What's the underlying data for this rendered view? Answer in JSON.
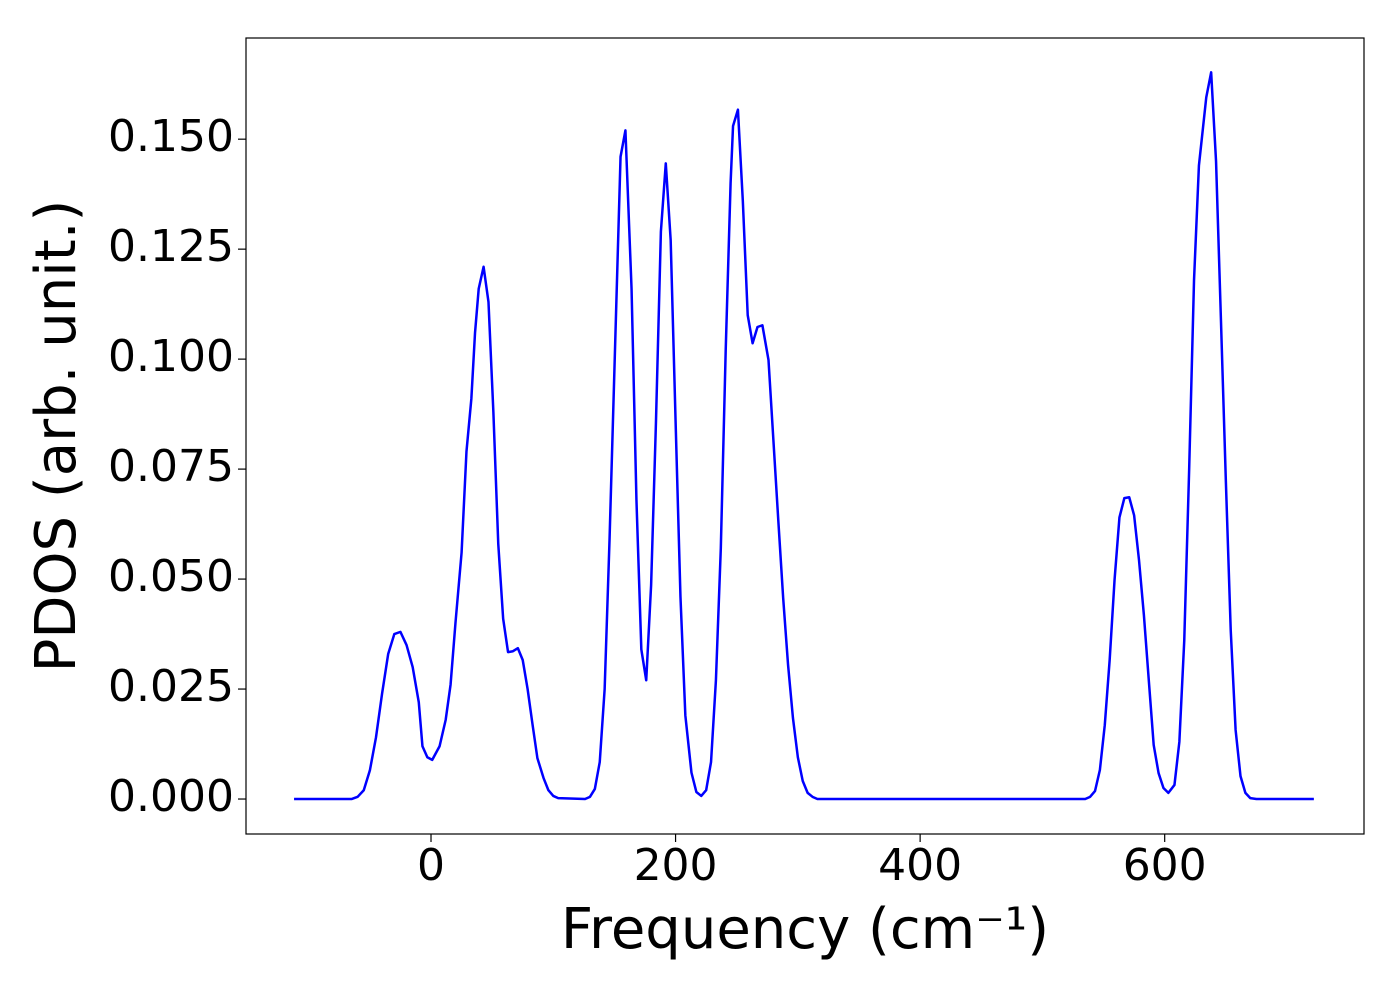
{
  "chart_data": {
    "type": "line",
    "xlabel": "Frequency (cm⁻¹)",
    "ylabel": "PDOS (arb. unit.)",
    "color": "#0000ff",
    "x": [
      -112,
      -65,
      -60,
      -55,
      -50,
      -45,
      -40,
      -35,
      -30,
      -25,
      -20,
      -15,
      -10,
      -7,
      -3,
      1,
      7,
      12,
      16,
      20,
      25,
      29,
      33,
      36,
      39,
      43,
      47,
      51,
      55,
      59,
      63,
      67,
      71,
      75,
      79,
      83,
      87,
      92,
      96,
      100,
      104,
      126,
      130,
      134,
      138,
      142,
      146,
      155,
      159,
      164,
      168,
      172,
      176,
      180,
      184,
      188,
      192,
      196,
      200,
      204,
      208,
      213,
      217,
      221,
      225,
      229,
      233,
      237,
      241,
      245,
      247,
      251,
      255,
      259,
      263,
      267,
      271,
      276,
      280,
      284,
      288,
      292,
      296,
      300,
      304,
      308,
      312,
      316,
      535,
      539,
      543,
      547,
      551,
      555,
      559,
      563,
      567,
      571,
      575,
      579,
      583,
      587,
      591,
      595,
      599,
      603,
      608,
      612,
      616,
      620,
      624,
      628,
      634,
      638,
      642,
      646,
      650,
      654,
      658,
      662,
      666,
      670,
      675,
      722
    ],
    "values": [
      0,
      0,
      0.0005,
      0.002,
      0.0065,
      0.014,
      0.024,
      0.033,
      0.0375,
      0.038,
      0.035,
      0.03,
      0.022,
      0.012,
      0.0095,
      0.0089,
      0.012,
      0.018,
      0.026,
      0.04,
      0.056,
      0.079,
      0.091,
      0.106,
      0.116,
      0.121,
      0.113,
      0.088,
      0.058,
      0.041,
      0.0334,
      0.0336,
      0.0343,
      0.0316,
      0.025,
      0.017,
      0.0093,
      0.0048,
      0.002,
      0.0007,
      0.0002,
      0,
      0.0005,
      0.0023,
      0.0084,
      0.025,
      0.059,
      0.146,
      0.152,
      0.116,
      0.068,
      0.034,
      0.027,
      0.0486,
      0.086,
      0.129,
      0.1445,
      0.127,
      0.086,
      0.046,
      0.019,
      0.006,
      0.0016,
      0.0007,
      0.002,
      0.0084,
      0.027,
      0.057,
      0.102,
      0.14,
      0.153,
      0.1567,
      0.136,
      0.11,
      0.1036,
      0.1073,
      0.1077,
      0.0998,
      0.0816,
      0.0634,
      0.0457,
      0.0305,
      0.0184,
      0.0095,
      0.0041,
      0.0014,
      0.0005,
      0,
      0,
      0.0005,
      0.0018,
      0.0066,
      0.0168,
      0.0316,
      0.0498,
      0.064,
      0.0684,
      0.0686,
      0.0645,
      0.0543,
      0.0418,
      0.027,
      0.0123,
      0.0059,
      0.0025,
      0.0014,
      0.0032,
      0.013,
      0.036,
      0.0748,
      0.118,
      0.144,
      0.1595,
      0.1652,
      0.145,
      0.109,
      0.0725,
      0.0384,
      0.0157,
      0.0052,
      0.0014,
      0.0002,
      0,
      0
    ],
    "xlim": [
      -151.3,
      763
    ],
    "ylim": [
      -0.00795,
      0.173
    ],
    "xticks": [
      0,
      200,
      400,
      600
    ],
    "yticks": [
      {
        "value": 0,
        "label": "0.000"
      },
      {
        "value": 0.025,
        "label": "0.025"
      },
      {
        "value": 0.05,
        "label": "0.050"
      },
      {
        "value": 0.075,
        "label": "0.075"
      },
      {
        "value": 0.1,
        "label": "0.100"
      },
      {
        "value": 0.125,
        "label": "0.125"
      },
      {
        "value": 0.15,
        "label": "0.150"
      }
    ],
    "grid": false
  }
}
